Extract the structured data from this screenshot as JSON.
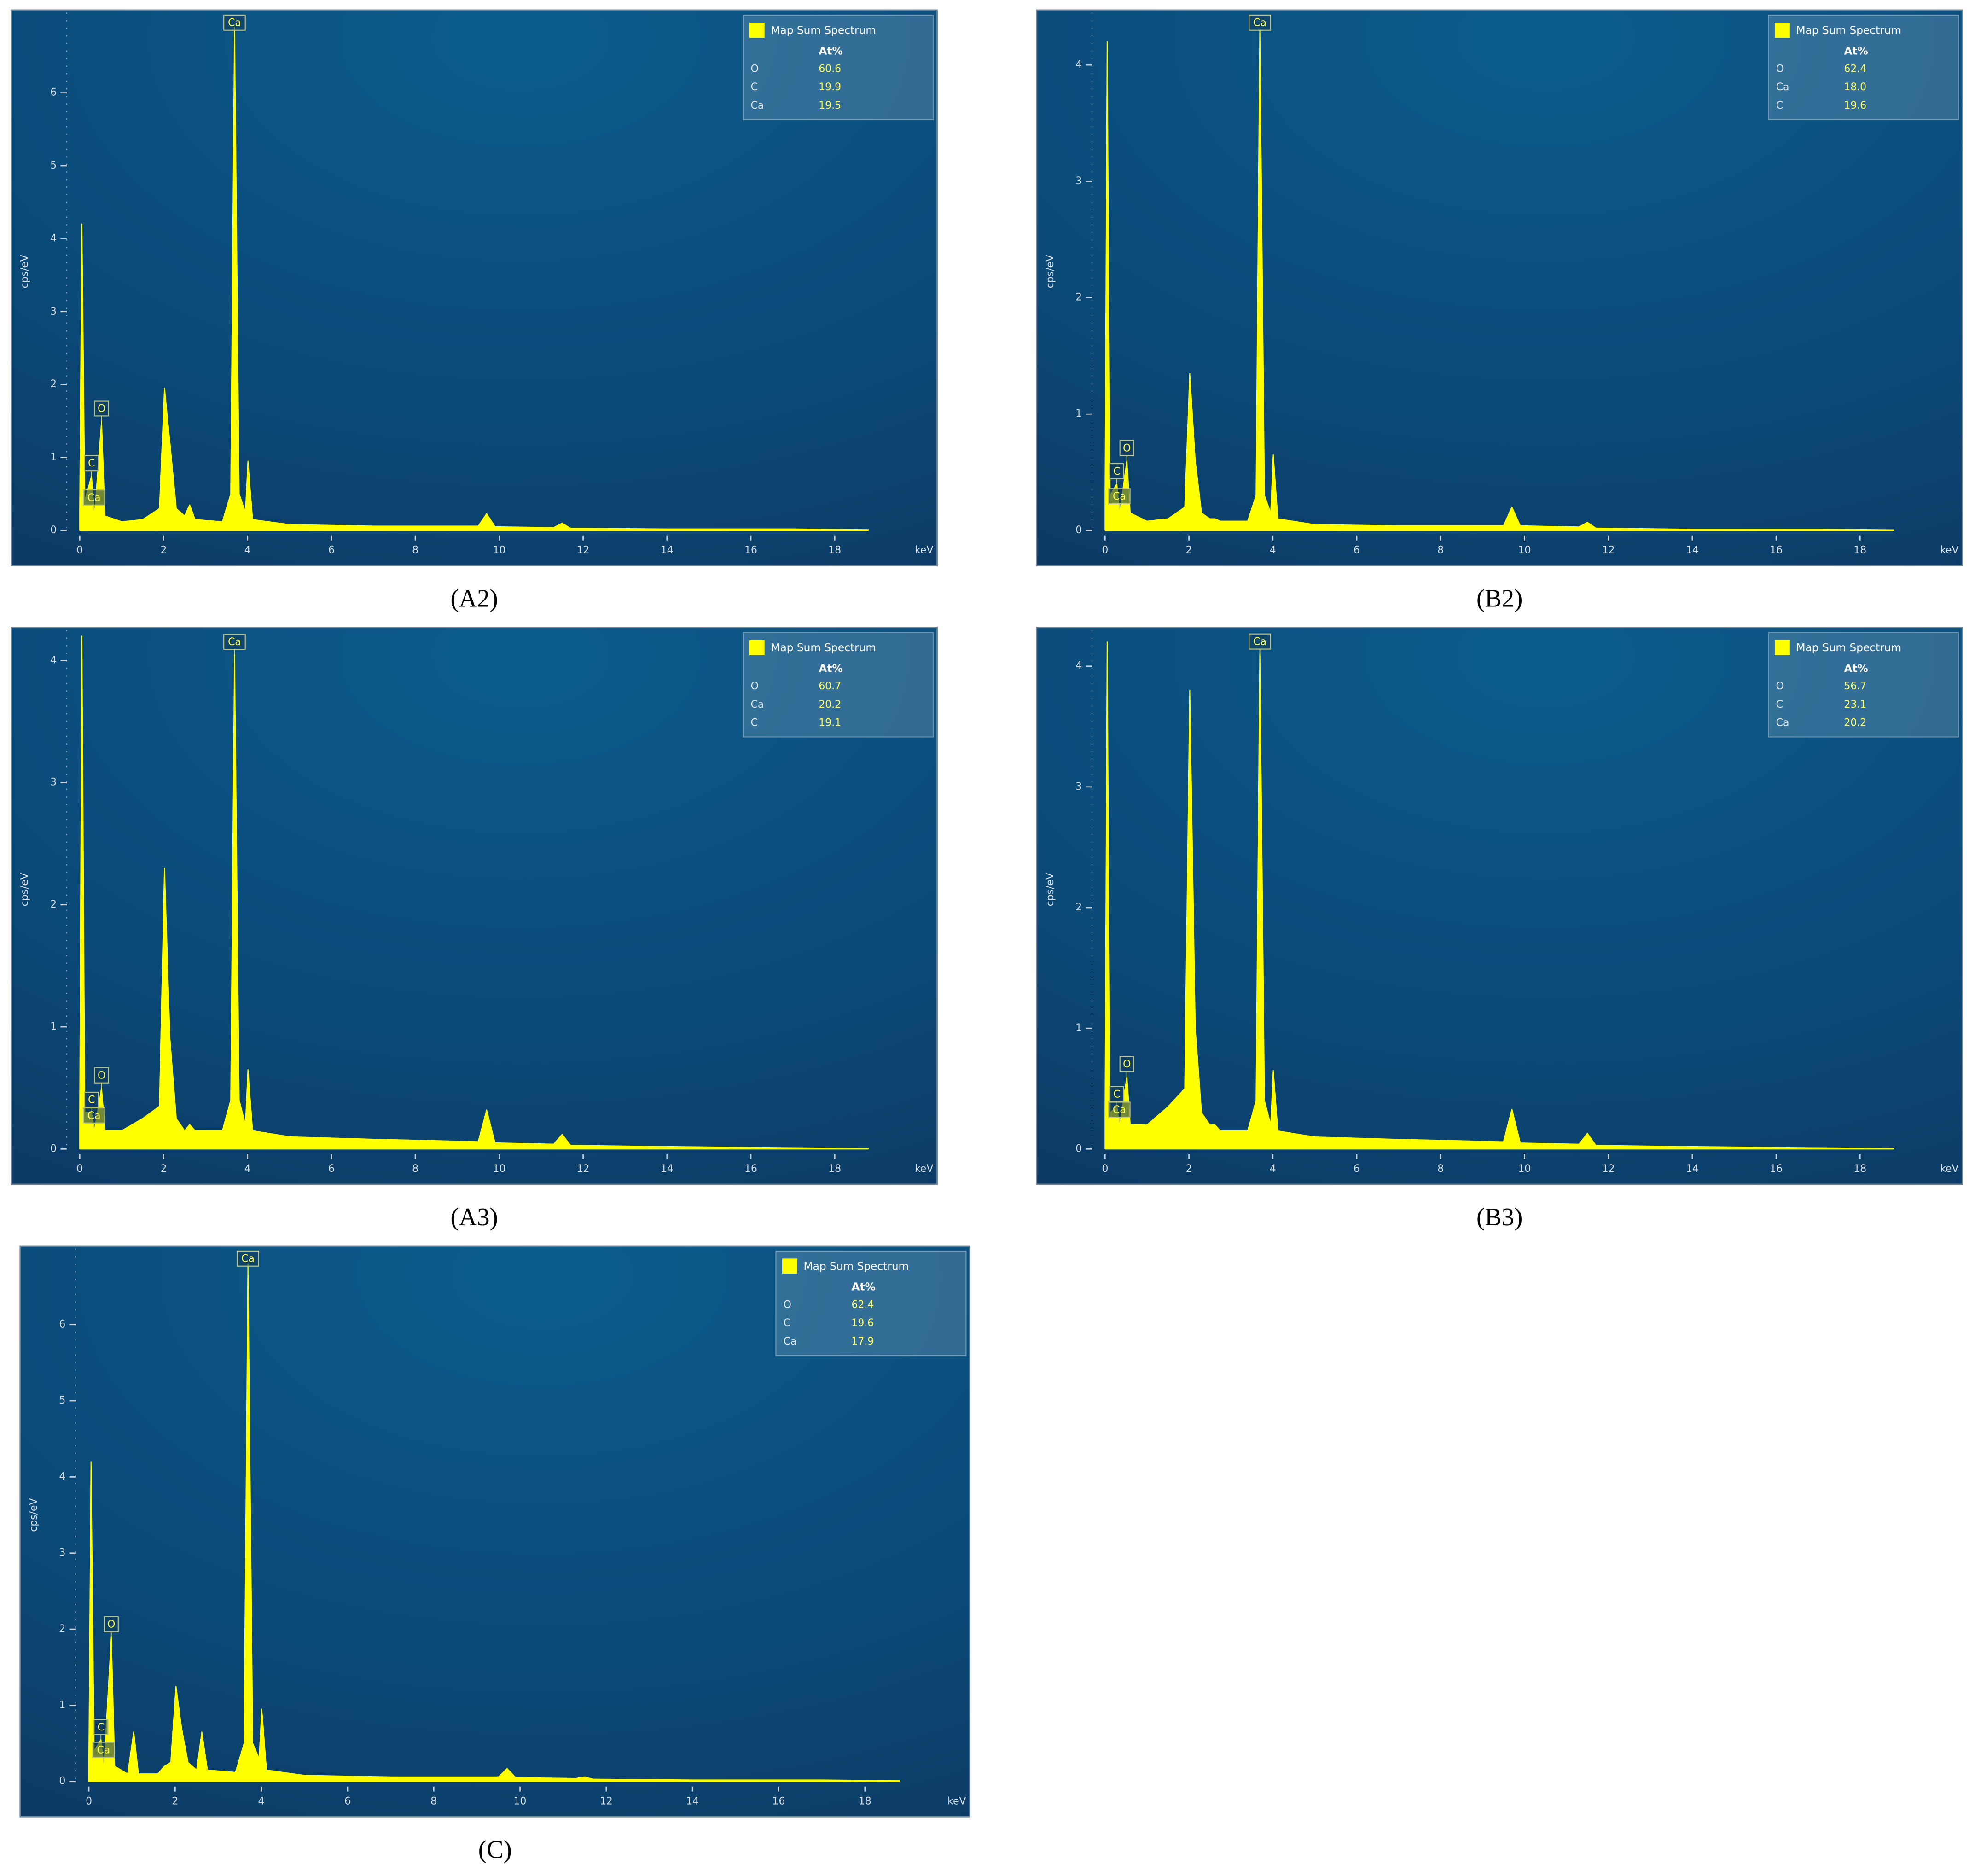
{
  "chart_data": [
    {
      "type": "line",
      "caption": "(A2)",
      "y_label": "cps/eV",
      "x_label": "keV",
      "xlim": [
        -0.25,
        20.2
      ],
      "xticks": [
        0,
        2,
        4,
        6,
        8,
        10,
        12,
        14,
        16,
        18
      ],
      "ylim": [
        0,
        7.1
      ],
      "yticks": [
        0,
        1,
        2,
        3,
        4,
        5,
        6
      ],
      "series": [
        {
          "name": "Map Sum Spectrum",
          "color": "#ffff00",
          "x": [
            0,
            0.05,
            0.12,
            0.28,
            0.35,
            0.52,
            0.6,
            1.0,
            1.5,
            1.9,
            2.02,
            2.15,
            2.3,
            2.5,
            2.62,
            2.75,
            3.4,
            3.6,
            3.69,
            3.8,
            3.95,
            4.01,
            4.12,
            5,
            7,
            9.5,
            9.7,
            9.9,
            11.3,
            11.5,
            11.7,
            14,
            17,
            18.8
          ],
          "values": [
            0.3,
            4.2,
            0.4,
            0.75,
            0.2,
            1.5,
            0.2,
            0.12,
            0.15,
            0.3,
            1.95,
            1.2,
            0.3,
            0.2,
            0.35,
            0.15,
            0.12,
            0.5,
            6.9,
            0.5,
            0.25,
            0.95,
            0.15,
            0.08,
            0.06,
            0.06,
            0.23,
            0.05,
            0.04,
            0.1,
            0.03,
            0.02,
            0.02,
            0.01
          ]
        }
      ],
      "table": {
        "header": "At%",
        "rows": [
          [
            "O",
            "60.6"
          ],
          [
            "C",
            "19.9"
          ],
          [
            "Ca",
            "19.5"
          ]
        ]
      },
      "peak_labels": [
        {
          "text": "Ca",
          "x": 3.69
        },
        {
          "text": "O",
          "x": 0.52
        },
        {
          "text": "C",
          "x": 0.28
        },
        {
          "text": "Ca",
          "x": 0.34
        }
      ]
    },
    {
      "type": "line",
      "caption": "(B2)",
      "y_label": "cps/eV",
      "x_label": "keV",
      "xlim": [
        -0.25,
        20.2
      ],
      "xticks": [
        0,
        2,
        4,
        6,
        8,
        10,
        12,
        14,
        16,
        18
      ],
      "ylim": [
        0,
        4.45
      ],
      "yticks": [
        0,
        1,
        2,
        3,
        4
      ],
      "series": [
        {
          "name": "Map Sum Spectrum",
          "color": "#ffff00",
          "x": [
            0,
            0.05,
            0.12,
            0.28,
            0.35,
            0.52,
            0.6,
            1.0,
            1.5,
            1.9,
            2.02,
            2.15,
            2.3,
            2.5,
            2.62,
            2.75,
            3.4,
            3.6,
            3.69,
            3.8,
            3.95,
            4.01,
            4.12,
            5,
            7,
            9.5,
            9.7,
            9.9,
            11.3,
            11.5,
            11.7,
            14,
            17,
            18.8
          ],
          "values": [
            0.3,
            4.2,
            0.3,
            0.4,
            0.15,
            0.6,
            0.15,
            0.08,
            0.1,
            0.2,
            1.35,
            0.6,
            0.15,
            0.1,
            0.1,
            0.08,
            0.08,
            0.3,
            4.3,
            0.3,
            0.15,
            0.65,
            0.1,
            0.05,
            0.04,
            0.04,
            0.2,
            0.04,
            0.03,
            0.07,
            0.02,
            0.01,
            0.01,
            0.005
          ]
        }
      ],
      "table": {
        "header": "At%",
        "rows": [
          [
            "O",
            "62.4"
          ],
          [
            "Ca",
            "18.0"
          ],
          [
            "C",
            "19.6"
          ]
        ]
      },
      "peak_labels": [
        {
          "text": "Ca",
          "x": 3.69
        },
        {
          "text": "O",
          "x": 0.52
        },
        {
          "text": "C",
          "x": 0.28
        },
        {
          "text": "Ca",
          "x": 0.34
        }
      ]
    },
    {
      "type": "line",
      "caption": "(A3)",
      "y_label": "cps/eV",
      "x_label": "keV",
      "xlim": [
        -0.25,
        20.2
      ],
      "xticks": [
        0,
        2,
        4,
        6,
        8,
        10,
        12,
        14,
        16,
        18
      ],
      "ylim": [
        0,
        4.25
      ],
      "yticks": [
        0,
        1,
        2,
        3,
        4
      ],
      "series": [
        {
          "name": "Map Sum Spectrum",
          "color": "#ffff00",
          "x": [
            0,
            0.05,
            0.12,
            0.28,
            0.35,
            0.52,
            0.6,
            1.0,
            1.5,
            1.9,
            2.02,
            2.15,
            2.3,
            2.5,
            2.62,
            2.75,
            3.4,
            3.6,
            3.69,
            3.8,
            3.95,
            4.01,
            4.12,
            5,
            7,
            9.5,
            9.7,
            9.9,
            11.3,
            11.5,
            11.7,
            14,
            17,
            18.8
          ],
          "values": [
            0.3,
            4.2,
            0.3,
            0.3,
            0.15,
            0.5,
            0.15,
            0.15,
            0.25,
            0.35,
            2.3,
            0.9,
            0.25,
            0.15,
            0.2,
            0.15,
            0.15,
            0.4,
            4.05,
            0.4,
            0.2,
            0.65,
            0.15,
            0.1,
            0.08,
            0.06,
            0.32,
            0.05,
            0.04,
            0.12,
            0.03,
            0.02,
            0.01,
            0.005
          ]
        }
      ],
      "table": {
        "header": "At%",
        "rows": [
          [
            "O",
            "60.7"
          ],
          [
            "Ca",
            "20.2"
          ],
          [
            "C",
            "19.1"
          ]
        ]
      },
      "peak_labels": [
        {
          "text": "Ca",
          "x": 3.69
        },
        {
          "text": "O",
          "x": 0.52
        },
        {
          "text": "C",
          "x": 0.28
        },
        {
          "text": "Ca",
          "x": 0.34
        }
      ]
    },
    {
      "type": "line",
      "caption": "(B3)",
      "y_label": "cps/eV",
      "x_label": "keV",
      "xlim": [
        -0.25,
        20.2
      ],
      "xticks": [
        0,
        2,
        4,
        6,
        8,
        10,
        12,
        14,
        16,
        18
      ],
      "ylim": [
        0,
        4.3
      ],
      "yticks": [
        0,
        1,
        2,
        3,
        4
      ],
      "series": [
        {
          "name": "Map Sum Spectrum",
          "color": "#ffff00",
          "x": [
            0,
            0.05,
            0.12,
            0.28,
            0.35,
            0.52,
            0.6,
            1.0,
            1.5,
            1.9,
            2.02,
            2.15,
            2.3,
            2.5,
            2.62,
            2.75,
            3.4,
            3.6,
            3.69,
            3.8,
            3.95,
            4.01,
            4.12,
            5,
            7,
            9.5,
            9.7,
            9.9,
            11.3,
            11.5,
            11.7,
            14,
            17,
            18.8
          ],
          "values": [
            0.3,
            4.2,
            0.3,
            0.35,
            0.2,
            0.6,
            0.2,
            0.2,
            0.35,
            0.5,
            3.8,
            1.0,
            0.3,
            0.2,
            0.2,
            0.15,
            0.15,
            0.4,
            4.1,
            0.4,
            0.2,
            0.65,
            0.15,
            0.1,
            0.08,
            0.06,
            0.33,
            0.05,
            0.04,
            0.13,
            0.03,
            0.02,
            0.01,
            0.005
          ]
        }
      ],
      "table": {
        "header": "At%",
        "rows": [
          [
            "O",
            "56.7"
          ],
          [
            "C",
            "23.1"
          ],
          [
            "Ca",
            "20.2"
          ]
        ]
      },
      "peak_labels": [
        {
          "text": "Ca",
          "x": 3.69
        },
        {
          "text": "O",
          "x": 0.52
        },
        {
          "text": "C",
          "x": 0.28
        },
        {
          "text": "Ca",
          "x": 0.34
        }
      ]
    },
    {
      "type": "line",
      "caption": "(C)",
      "y_label": "cps/eV",
      "x_label": "keV",
      "xlim": [
        -0.25,
        20.2
      ],
      "xticks": [
        0,
        2,
        4,
        6,
        8,
        10,
        12,
        14,
        16,
        18
      ],
      "ylim": [
        0,
        7.0
      ],
      "yticks": [
        0,
        1,
        2,
        3,
        4,
        5,
        6
      ],
      "series": [
        {
          "name": "Map Sum Spectrum",
          "color": "#ffff00",
          "x": [
            0,
            0.05,
            0.12,
            0.28,
            0.35,
            0.52,
            0.6,
            0.9,
            1.04,
            1.15,
            1.6,
            1.75,
            1.9,
            2.02,
            2.15,
            2.3,
            2.5,
            2.62,
            2.75,
            3.4,
            3.6,
            3.69,
            3.8,
            3.95,
            4.01,
            4.12,
            5,
            7,
            9.5,
            9.7,
            9.9,
            11.3,
            11.5,
            11.7,
            14,
            17,
            18.8
          ],
          "values": [
            0.3,
            4.2,
            0.4,
            0.55,
            0.2,
            1.9,
            0.2,
            0.1,
            0.65,
            0.1,
            0.1,
            0.2,
            0.25,
            1.25,
            0.7,
            0.25,
            0.15,
            0.65,
            0.15,
            0.12,
            0.5,
            6.8,
            0.5,
            0.3,
            0.95,
            0.15,
            0.08,
            0.06,
            0.06,
            0.17,
            0.05,
            0.04,
            0.06,
            0.03,
            0.02,
            0.02,
            0.01
          ]
        }
      ],
      "table": {
        "header": "At%",
        "rows": [
          [
            "O",
            "62.4"
          ],
          [
            "C",
            "19.6"
          ],
          [
            "Ca",
            "17.9"
          ]
        ]
      },
      "peak_labels": [
        {
          "text": "Ca",
          "x": 3.69
        },
        {
          "text": "O",
          "x": 0.52
        },
        {
          "text": "C",
          "x": 0.28
        },
        {
          "text": "Ca",
          "x": 0.34
        }
      ]
    }
  ]
}
